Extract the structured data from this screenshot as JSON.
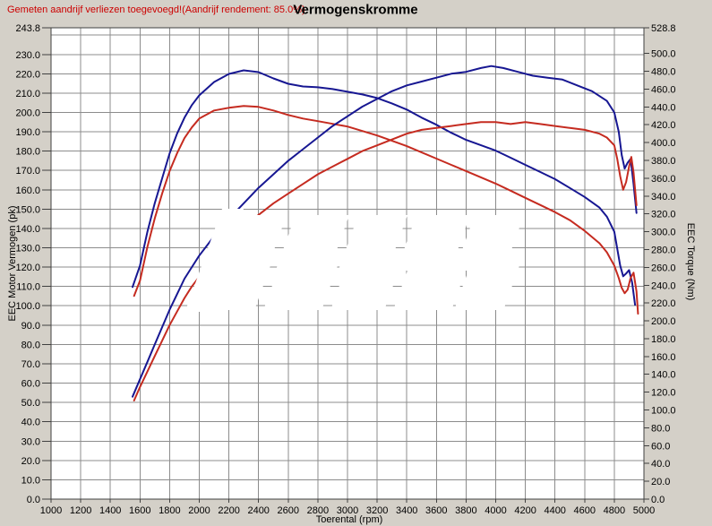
{
  "header": {
    "warning": "Gemeten aandrijf verliezen toegevoegd!(Aandrijf rendement: 85.0%)",
    "title": "Vermogenskromme"
  },
  "colors": {
    "background": "#d4d0c8",
    "plot_background": "#ffffff",
    "grid": "#8c8c8c",
    "border": "#404040",
    "tick": "#404040",
    "warning_text": "#cc0000",
    "blue_series": "#171792",
    "red_series": "#c52b20",
    "watermark": "#ffffff"
  },
  "watermark_note": "large white illegible diagonal watermark text covering centre of plot",
  "chart_data": {
    "type": "line",
    "title": "Vermogenskromme",
    "xlabel": "Toerental (rpm)",
    "ylabel_left": "EEC Motor Vermogen (pk)",
    "ylabel_right": "EEC Torque (Nm)",
    "grid": true,
    "legend": "none",
    "x_axis": {
      "min": 1000,
      "max": 5000,
      "tick_step": 200
    },
    "y_left": {
      "min": 0,
      "max": 243.8,
      "tick_step": 10,
      "top_label": 243.8,
      "unit": "pk"
    },
    "y_right": {
      "min": 0,
      "max": 528.8,
      "tick_step": 20,
      "top_label": 528.8,
      "unit": "Nm"
    },
    "series": [
      {
        "name": "torque-blue",
        "axis": "right",
        "unit": "Nm",
        "color": "#171792",
        "points": [
          [
            1550,
            238
          ],
          [
            1600,
            262
          ],
          [
            1650,
            300
          ],
          [
            1700,
            332
          ],
          [
            1750,
            360
          ],
          [
            1800,
            388
          ],
          [
            1850,
            410
          ],
          [
            1900,
            428
          ],
          [
            1950,
            442
          ],
          [
            2000,
            453
          ],
          [
            2100,
            468
          ],
          [
            2200,
            477
          ],
          [
            2300,
            481
          ],
          [
            2400,
            479
          ],
          [
            2500,
            472
          ],
          [
            2600,
            466
          ],
          [
            2700,
            463
          ],
          [
            2800,
            462
          ],
          [
            2900,
            460
          ],
          [
            3000,
            457
          ],
          [
            3100,
            454
          ],
          [
            3200,
            450
          ],
          [
            3300,
            444
          ],
          [
            3400,
            437
          ],
          [
            3500,
            428
          ],
          [
            3600,
            420
          ],
          [
            3700,
            411
          ],
          [
            3800,
            403
          ],
          [
            3900,
            397
          ],
          [
            4000,
            391
          ],
          [
            4100,
            383
          ],
          [
            4200,
            375
          ],
          [
            4300,
            367
          ],
          [
            4400,
            359
          ],
          [
            4500,
            349
          ],
          [
            4600,
            339
          ],
          [
            4700,
            327
          ],
          [
            4750,
            317
          ],
          [
            4800,
            300
          ],
          [
            4840,
            262
          ],
          [
            4860,
            250
          ],
          [
            4880,
            253
          ],
          [
            4900,
            257
          ],
          [
            4920,
            243
          ],
          [
            4940,
            218
          ]
        ]
      },
      {
        "name": "torque-red",
        "axis": "right",
        "unit": "Nm",
        "color": "#c52b20",
        "points": [
          [
            1560,
            228
          ],
          [
            1600,
            245
          ],
          [
            1650,
            283
          ],
          [
            1700,
            315
          ],
          [
            1750,
            343
          ],
          [
            1800,
            368
          ],
          [
            1850,
            388
          ],
          [
            1900,
            405
          ],
          [
            1950,
            417
          ],
          [
            2000,
            427
          ],
          [
            2100,
            436
          ],
          [
            2200,
            439
          ],
          [
            2300,
            441
          ],
          [
            2400,
            440
          ],
          [
            2500,
            436
          ],
          [
            2600,
            431
          ],
          [
            2700,
            427
          ],
          [
            2800,
            424
          ],
          [
            2900,
            421
          ],
          [
            3000,
            418
          ],
          [
            3100,
            413
          ],
          [
            3200,
            408
          ],
          [
            3300,
            402
          ],
          [
            3400,
            396
          ],
          [
            3500,
            389
          ],
          [
            3600,
            382
          ],
          [
            3700,
            375
          ],
          [
            3800,
            368
          ],
          [
            3900,
            361
          ],
          [
            4000,
            354
          ],
          [
            4100,
            346
          ],
          [
            4200,
            338
          ],
          [
            4300,
            330
          ],
          [
            4400,
            322
          ],
          [
            4500,
            313
          ],
          [
            4600,
            301
          ],
          [
            4700,
            287
          ],
          [
            4750,
            277
          ],
          [
            4800,
            262
          ],
          [
            4830,
            248
          ],
          [
            4850,
            237
          ],
          [
            4870,
            231
          ],
          [
            4890,
            235
          ],
          [
            4910,
            248
          ],
          [
            4930,
            254
          ],
          [
            4950,
            233
          ],
          [
            4960,
            208
          ]
        ]
      },
      {
        "name": "power-blue",
        "axis": "left",
        "unit": "pk",
        "color": "#171792",
        "points": [
          [
            1550,
            53
          ],
          [
            1600,
            62
          ],
          [
            1650,
            71
          ],
          [
            1700,
            80
          ],
          [
            1750,
            89
          ],
          [
            1800,
            98
          ],
          [
            1850,
            106
          ],
          [
            1900,
            114
          ],
          [
            1950,
            120
          ],
          [
            2000,
            126
          ],
          [
            2100,
            136
          ],
          [
            2200,
            145
          ],
          [
            2300,
            153
          ],
          [
            2400,
            161
          ],
          [
            2500,
            168
          ],
          [
            2600,
            175
          ],
          [
            2700,
            181
          ],
          [
            2800,
            187
          ],
          [
            2900,
            193
          ],
          [
            3000,
            198
          ],
          [
            3100,
            203
          ],
          [
            3200,
            207
          ],
          [
            3300,
            211
          ],
          [
            3400,
            214
          ],
          [
            3500,
            216
          ],
          [
            3600,
            218
          ],
          [
            3700,
            220
          ],
          [
            3800,
            221
          ],
          [
            3900,
            223
          ],
          [
            3970,
            224
          ],
          [
            4050,
            223
          ],
          [
            4150,
            221
          ],
          [
            4250,
            219
          ],
          [
            4350,
            218
          ],
          [
            4450,
            217
          ],
          [
            4550,
            214
          ],
          [
            4650,
            211
          ],
          [
            4750,
            206
          ],
          [
            4800,
            200
          ],
          [
            4830,
            190
          ],
          [
            4850,
            178
          ],
          [
            4870,
            171
          ],
          [
            4890,
            174
          ],
          [
            4910,
            176
          ],
          [
            4930,
            163
          ],
          [
            4950,
            148
          ]
        ]
      },
      {
        "name": "power-red",
        "axis": "left",
        "unit": "pk",
        "color": "#c52b20",
        "points": [
          [
            1560,
            51
          ],
          [
            1600,
            58
          ],
          [
            1650,
            66
          ],
          [
            1700,
            74
          ],
          [
            1750,
            82
          ],
          [
            1800,
            90
          ],
          [
            1850,
            97
          ],
          [
            1900,
            104
          ],
          [
            1950,
            110
          ],
          [
            2000,
            115
          ],
          [
            2100,
            124
          ],
          [
            2200,
            132
          ],
          [
            2300,
            140
          ],
          [
            2400,
            147
          ],
          [
            2500,
            153
          ],
          [
            2600,
            158
          ],
          [
            2700,
            163
          ],
          [
            2800,
            168
          ],
          [
            2900,
            172
          ],
          [
            3000,
            176
          ],
          [
            3100,
            180
          ],
          [
            3200,
            183
          ],
          [
            3300,
            186
          ],
          [
            3400,
            189
          ],
          [
            3500,
            191
          ],
          [
            3600,
            192
          ],
          [
            3700,
            193
          ],
          [
            3800,
            194
          ],
          [
            3900,
            195
          ],
          [
            4000,
            195
          ],
          [
            4100,
            194
          ],
          [
            4200,
            195
          ],
          [
            4300,
            194
          ],
          [
            4400,
            193
          ],
          [
            4500,
            192
          ],
          [
            4600,
            191
          ],
          [
            4700,
            189
          ],
          [
            4750,
            187
          ],
          [
            4800,
            183
          ],
          [
            4820,
            176
          ],
          [
            4840,
            167
          ],
          [
            4860,
            160
          ],
          [
            4880,
            164
          ],
          [
            4900,
            172
          ],
          [
            4915,
            177
          ],
          [
            4930,
            169
          ],
          [
            4950,
            152
          ]
        ]
      }
    ]
  }
}
